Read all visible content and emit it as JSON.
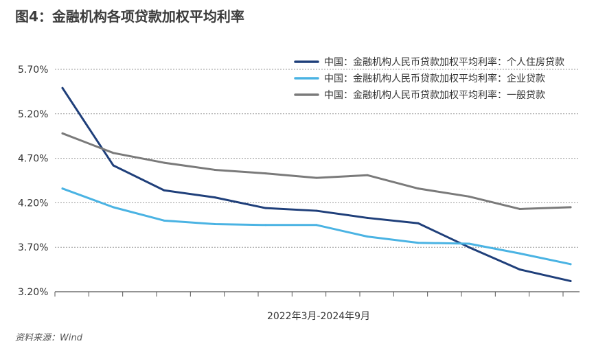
{
  "title": "图4：金融机构各项贷款加权平均利率",
  "source": "资料来源：Wind",
  "chart_data": {
    "type": "line",
    "title": "金融机构各项贷款加权平均利率",
    "xlabel": "2022年3月-2024年9月",
    "ylabel": "",
    "ylim": [
      3.2,
      5.7
    ],
    "yticks": [
      "3.20%",
      "3.70%",
      "4.20%",
      "4.70%",
      "5.20%",
      "5.70%"
    ],
    "ytick_values": [
      3.2,
      3.7,
      4.2,
      4.7,
      5.2,
      5.7
    ],
    "grid": true,
    "legend_position": "top-right",
    "x": [
      0,
      1,
      2,
      3,
      4,
      5,
      6,
      7,
      8,
      9,
      10
    ],
    "series": [
      {
        "name": "中国：金融机构人民币贷款加权平均利率：个人住房贷款",
        "color": "#1f3f7a",
        "values": [
          5.49,
          4.62,
          4.34,
          4.26,
          4.14,
          4.11,
          4.03,
          3.97,
          3.7,
          3.45,
          3.32
        ]
      },
      {
        "name": "中国：金融机构人民币贷款加权平均利率：企业贷款",
        "color": "#4ab3e3",
        "values": [
          4.36,
          4.15,
          4.0,
          3.96,
          3.95,
          3.95,
          3.82,
          3.75,
          3.74,
          3.63,
          3.51
        ]
      },
      {
        "name": "中国：金融机构人民币贷款加权平均利率：一般贷款",
        "color": "#7a7a7a",
        "values": [
          4.98,
          4.76,
          4.65,
          4.57,
          4.53,
          4.48,
          4.51,
          4.36,
          4.27,
          4.13,
          4.15
        ]
      }
    ]
  }
}
